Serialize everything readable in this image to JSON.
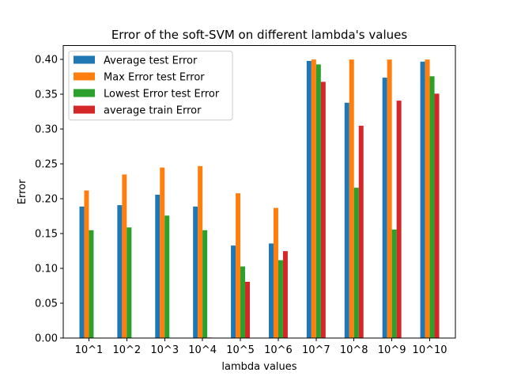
{
  "chart_data": {
    "type": "bar",
    "title": "Error of the soft-SVM on different lambda's values",
    "xlabel": "lambda values",
    "ylabel": "Error",
    "categories": [
      "10^1",
      "10^2",
      "10^3",
      "10^4",
      "10^5",
      "10^6",
      "10^7",
      "10^8",
      "10^9",
      "10^10"
    ],
    "ylim": [
      0,
      0.42
    ],
    "yticks": [
      "0.00",
      "0.05",
      "0.10",
      "0.15",
      "0.20",
      "0.25",
      "0.30",
      "0.35",
      "0.40"
    ],
    "legend_position": "top-left",
    "grid": false,
    "series": [
      {
        "name": "Average test Error",
        "color": "#1f77b4",
        "values": [
          0.189,
          0.191,
          0.206,
          0.189,
          0.133,
          0.136,
          0.398,
          0.338,
          0.374,
          0.397
        ]
      },
      {
        "name": "Max Error test Error",
        "color": "#ff7f0e",
        "values": [
          0.212,
          0.235,
          0.245,
          0.247,
          0.208,
          0.187,
          0.4,
          0.4,
          0.4,
          0.4
        ]
      },
      {
        "name": "Lowest Error test Error",
        "color": "#2ca02c",
        "values": [
          0.155,
          0.159,
          0.176,
          0.155,
          0.103,
          0.112,
          0.393,
          0.216,
          0.156,
          0.376
        ]
      },
      {
        "name": "average train Error",
        "color": "#d62728",
        "values": [
          0.0,
          0.0,
          0.0,
          0.001,
          0.081,
          0.125,
          0.368,
          0.305,
          0.341,
          0.351
        ]
      }
    ]
  }
}
